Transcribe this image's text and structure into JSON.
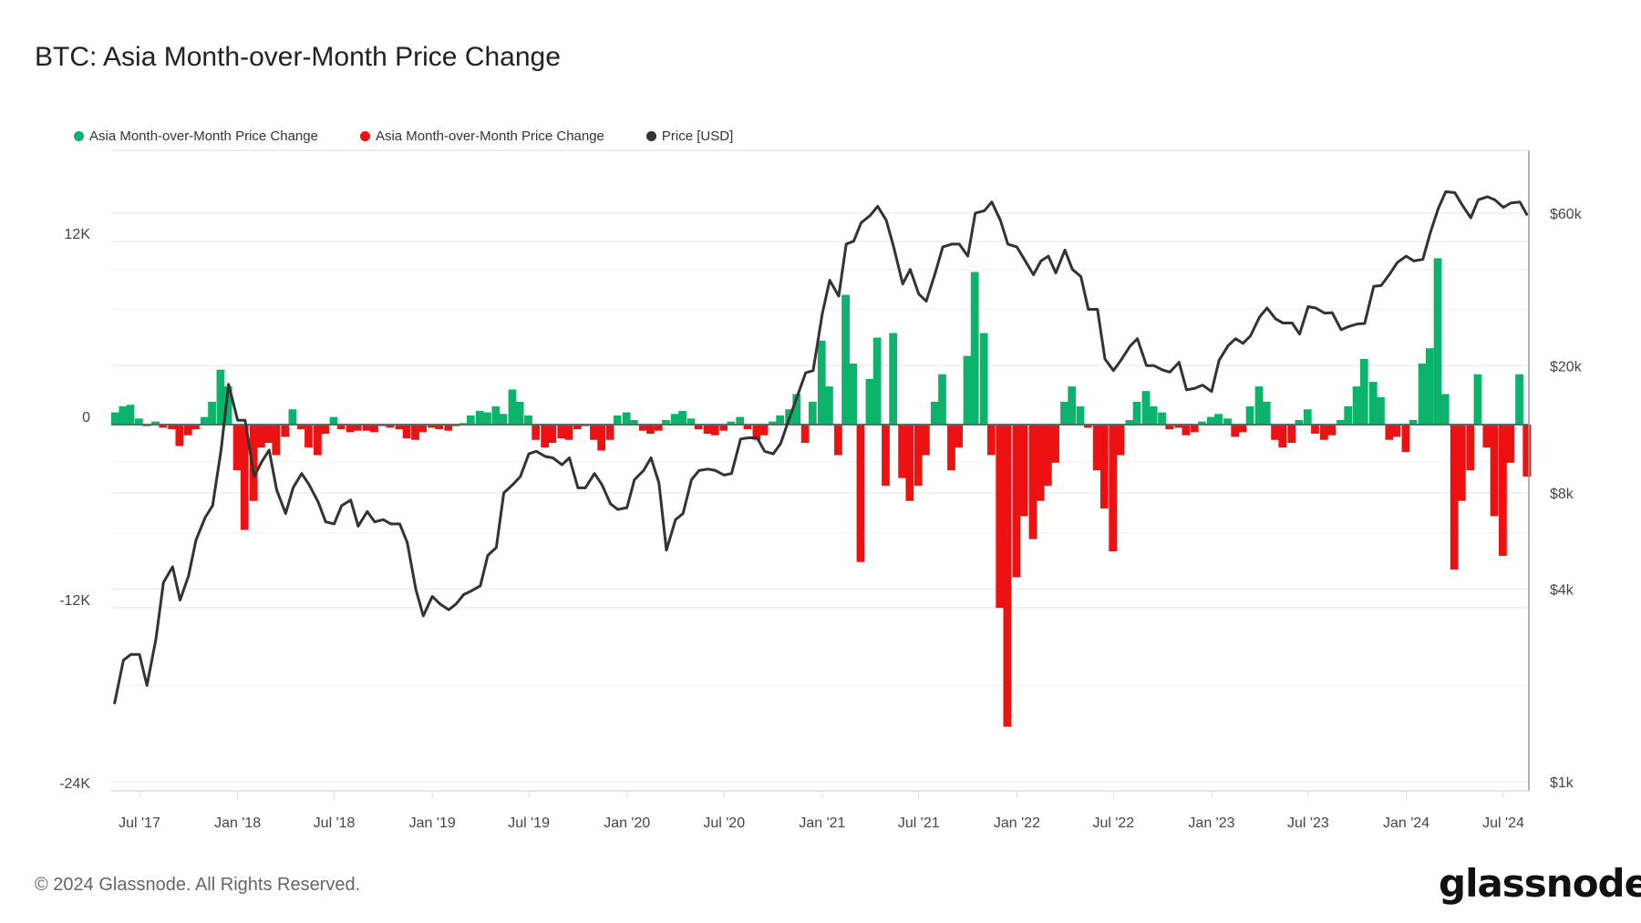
{
  "title": "BTC: Asia Month-over-Month Price Change",
  "legend": [
    {
      "label": "Asia Month-over-Month Price Change",
      "color": "#0bb36b"
    },
    {
      "label": "Asia Month-over-Month Price Change",
      "color": "#ee1111"
    },
    {
      "label": "Price [USD]",
      "color": "#333333"
    }
  ],
  "footer": "© 2024 Glassnode. All Rights Reserved.",
  "logo": "glassnode",
  "chart_data": {
    "type": "bar+line",
    "title": "BTC: Asia Month-over-Month Price Change",
    "left_axis": {
      "ticks": [
        12000,
        0,
        -12000,
        -24000
      ],
      "tick_labels": [
        "12K",
        "0",
        "-12K",
        "-24K"
      ],
      "range": [
        -24000,
        18000
      ]
    },
    "right_axis": {
      "scale": "log",
      "ticks": [
        60000,
        20000,
        8000,
        4000,
        1000
      ],
      "tick_labels": [
        "$60k",
        "$20k",
        "$8k",
        "$4k",
        "$1k"
      ]
    },
    "x_axis": {
      "ticks": [
        "2017-07-01",
        "2018-01-01",
        "2018-07-01",
        "2019-01-01",
        "2019-07-01",
        "2020-01-01",
        "2020-07-01",
        "2021-01-01",
        "2021-07-01",
        "2022-01-01",
        "2022-07-01",
        "2023-01-01",
        "2023-07-01",
        "2024-01-01",
        "2024-07-01"
      ],
      "tick_labels": [
        "Jul '17",
        "Jan '18",
        "Jul '18",
        "Jan '19",
        "Jul '19",
        "Jan '20",
        "Jul '20",
        "Jan '21",
        "Jul '21",
        "Jan '22",
        "Jul '22",
        "Jan '23",
        "Jul '23",
        "Jan '24",
        "Jul '24"
      ]
    },
    "grid": true,
    "legend_position": "top-left",
    "positive_color": "#0bb36b",
    "negative_color": "#ee1111",
    "price_color": "#333333",
    "x": [
      "2017-05-15",
      "2017-06-01",
      "2017-06-15",
      "2017-07-01",
      "2017-07-15",
      "2017-08-01",
      "2017-08-15",
      "2017-09-01",
      "2017-09-15",
      "2017-10-01",
      "2017-10-15",
      "2017-11-01",
      "2017-11-15",
      "2017-12-01",
      "2017-12-15",
      "2018-01-01",
      "2018-01-15",
      "2018-02-01",
      "2018-02-15",
      "2018-03-01",
      "2018-03-15",
      "2018-04-01",
      "2018-04-15",
      "2018-05-01",
      "2018-05-15",
      "2018-06-01",
      "2018-06-15",
      "2018-07-01",
      "2018-07-15",
      "2018-08-01",
      "2018-08-15",
      "2018-09-01",
      "2018-09-15",
      "2018-10-01",
      "2018-10-15",
      "2018-11-01",
      "2018-11-15",
      "2018-12-01",
      "2018-12-15",
      "2019-01-01",
      "2019-01-15",
      "2019-02-01",
      "2019-02-15",
      "2019-03-01",
      "2019-03-15",
      "2019-04-01",
      "2019-04-15",
      "2019-05-01",
      "2019-05-15",
      "2019-06-01",
      "2019-06-15",
      "2019-07-01",
      "2019-07-15",
      "2019-08-01",
      "2019-08-15",
      "2019-09-01",
      "2019-09-15",
      "2019-10-01",
      "2019-10-15",
      "2019-11-01",
      "2019-11-15",
      "2019-12-01",
      "2019-12-15",
      "2020-01-01",
      "2020-01-15",
      "2020-02-01",
      "2020-02-15",
      "2020-03-01",
      "2020-03-15",
      "2020-04-01",
      "2020-04-15",
      "2020-05-01",
      "2020-05-15",
      "2020-06-01",
      "2020-06-15",
      "2020-07-01",
      "2020-07-15",
      "2020-08-01",
      "2020-08-15",
      "2020-09-01",
      "2020-09-15",
      "2020-10-01",
      "2020-10-15",
      "2020-11-01",
      "2020-11-15",
      "2020-12-01",
      "2020-12-15",
      "2021-01-01",
      "2021-01-15",
      "2021-02-01",
      "2021-02-15",
      "2021-03-01",
      "2021-03-15",
      "2021-04-01",
      "2021-04-15",
      "2021-05-01",
      "2021-05-15",
      "2021-06-01",
      "2021-06-15",
      "2021-07-01",
      "2021-07-15",
      "2021-08-01",
      "2021-08-15",
      "2021-09-01",
      "2021-09-15",
      "2021-10-01",
      "2021-10-15",
      "2021-11-01",
      "2021-11-15",
      "2021-12-01",
      "2021-12-15",
      "2022-01-01",
      "2022-01-15",
      "2022-02-01",
      "2022-02-15",
      "2022-03-01",
      "2022-03-15",
      "2022-04-01",
      "2022-04-15",
      "2022-05-01",
      "2022-05-15",
      "2022-06-01",
      "2022-06-15",
      "2022-07-01",
      "2022-07-15",
      "2022-08-01",
      "2022-08-15",
      "2022-09-01",
      "2022-09-15",
      "2022-10-01",
      "2022-10-15",
      "2022-11-01",
      "2022-11-15",
      "2022-12-01",
      "2022-12-15",
      "2023-01-01",
      "2023-01-15",
      "2023-02-01",
      "2023-02-15",
      "2023-03-01",
      "2023-03-15",
      "2023-04-01",
      "2023-04-15",
      "2023-05-01",
      "2023-05-15",
      "2023-06-01",
      "2023-06-15",
      "2023-07-01",
      "2023-07-15",
      "2023-08-01",
      "2023-08-15",
      "2023-09-01",
      "2023-09-15",
      "2023-10-01",
      "2023-10-15",
      "2023-11-01",
      "2023-11-15",
      "2023-12-01",
      "2023-12-15",
      "2024-01-01",
      "2024-01-15",
      "2024-02-01",
      "2024-02-15",
      "2024-03-01",
      "2024-03-15",
      "2024-04-01",
      "2024-04-15",
      "2024-05-01",
      "2024-05-15",
      "2024-06-01",
      "2024-06-15",
      "2024-07-01",
      "2024-07-15",
      "2024-08-01",
      "2024-08-15"
    ],
    "series": [
      {
        "name": "Asia Month-over-Month Price Change",
        "axis": "left",
        "type": "bar",
        "values": [
          800,
          1200,
          1300,
          400,
          -100,
          200,
          -200,
          -300,
          -1400,
          -700,
          -300,
          500,
          1500,
          3600,
          2500,
          -3000,
          -6900,
          -5000,
          -1500,
          -1200,
          -2000,
          -800,
          1000,
          -300,
          -1500,
          -2000,
          -600,
          500,
          -300,
          -500,
          -400,
          -400,
          -500,
          -100,
          -200,
          -300,
          -900,
          -1000,
          -500,
          -200,
          -300,
          -400,
          -100,
          100,
          600,
          900,
          800,
          1200,
          700,
          2300,
          1500,
          600,
          -1000,
          -1500,
          -1200,
          -900,
          -1000,
          -300,
          -100,
          -1000,
          -1700,
          -1000,
          600,
          800,
          300,
          -400,
          -600,
          -400,
          300,
          700,
          900,
          400,
          -300,
          -600,
          -700,
          -400,
          200,
          500,
          -300,
          -1000,
          -700,
          200,
          600,
          1000,
          2000,
          -1200,
          1500,
          5500,
          2500,
          -2000,
          8500,
          4000,
          -9000,
          3000,
          5700,
          -4000,
          6000,
          -3500,
          -5000,
          -4000,
          -2000,
          1500,
          3300,
          -3000,
          -1500,
          4500,
          10000,
          6000,
          -2000,
          -12000,
          -19800,
          -10000,
          -6000,
          -7500,
          -5000,
          -4000,
          -2500,
          1500,
          2500,
          1200,
          -200,
          -3000,
          -5500,
          -8300,
          -2000,
          300,
          1500,
          2200,
          1200,
          800,
          -300,
          -200,
          -700,
          -500,
          200,
          500,
          700,
          400,
          -800,
          -500,
          1200,
          2500,
          1500,
          -1000,
          -1500,
          -1200,
          300,
          1000,
          -600,
          -1000,
          -700,
          300,
          1200,
          2500,
          4300,
          2800,
          1800,
          -1000,
          -800,
          -1800,
          300,
          4000,
          5000,
          10900,
          2000,
          -9500,
          -5000,
          -3000,
          3300,
          -1500,
          -6000,
          -8600,
          -2500,
          3300,
          -3400
        ]
      },
      {
        "name": "Price [USD]",
        "axis": "right",
        "type": "line",
        "values": [
          1750,
          2400,
          2500,
          2500,
          2000,
          2800,
          4200,
          4700,
          3700,
          4400,
          5700,
          6700,
          7300,
          10900,
          17500,
          13500,
          13500,
          9000,
          10000,
          10900,
          8200,
          6900,
          8300,
          9200,
          8500,
          7500,
          6500,
          6400,
          7300,
          7600,
          6300,
          7000,
          6500,
          6600,
          6400,
          6400,
          5600,
          4000,
          3300,
          3800,
          3600,
          3450,
          3600,
          3850,
          3950,
          4100,
          5100,
          5400,
          8000,
          8500,
          9000,
          10600,
          10800,
          10400,
          10300,
          9800,
          10300,
          8300,
          8300,
          9200,
          8500,
          7400,
          7100,
          7200,
          8800,
          9400,
          10300,
          8600,
          5300,
          6600,
          6900,
          8800,
          9400,
          9500,
          9400,
          9100,
          9200,
          11800,
          11900,
          11900,
          10800,
          10600,
          11400,
          13800,
          16000,
          19000,
          19300,
          29000,
          37000,
          33000,
          48000,
          49000,
          56000,
          59000,
          63000,
          57000,
          47000,
          36000,
          40000,
          33500,
          31800,
          39000,
          47000,
          48000,
          48000,
          44000,
          60000,
          61000,
          65000,
          57000,
          48000,
          47000,
          43000,
          38500,
          42500,
          44000,
          39000,
          46000,
          40000,
          38000,
          30000,
          30000,
          21000,
          19300,
          20800,
          23000,
          24300,
          20000,
          20000,
          19400,
          19100,
          20500,
          16800,
          17000,
          17400,
          16600,
          20800,
          23100,
          24300,
          23500,
          24800,
          28400,
          30300,
          28000,
          27200,
          27200,
          25100,
          30600,
          30300,
          29200,
          29300,
          25900,
          26500,
          27000,
          27100,
          35400,
          35600,
          38700,
          42000,
          44000,
          42500,
          43000,
          52000,
          62000,
          70000,
          69500,
          63500,
          58000,
          66000,
          67500,
          66000,
          62500,
          64500,
          65000,
          59000
        ]
      }
    ]
  }
}
